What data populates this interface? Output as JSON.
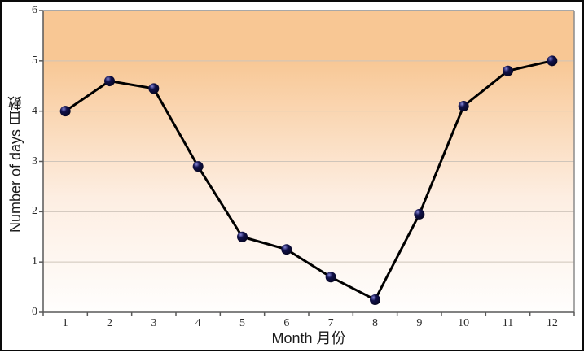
{
  "chart_data": {
    "type": "line",
    "title": "",
    "xlabel": "Month 月份",
    "ylabel": "Number of days 日數",
    "categories": [
      "1",
      "2",
      "3",
      "4",
      "5",
      "6",
      "7",
      "8",
      "9",
      "10",
      "11",
      "12"
    ],
    "series": [
      {
        "name": "Number of days",
        "values": [
          4.0,
          4.6,
          4.45,
          2.9,
          1.5,
          1.25,
          0.7,
          0.25,
          1.95,
          4.1,
          4.8,
          5.0
        ]
      }
    ],
    "ylim": [
      0,
      6
    ],
    "yticks": [
      0,
      1,
      2,
      3,
      4,
      5,
      6
    ],
    "grid": "horizontal",
    "legend": "none",
    "style": {
      "plot_bg_gradient_top": "#F8C794",
      "plot_bg_gradient_mid": "#FDEEE2",
      "plot_bg_gradient_bottom": "#FFFEFD",
      "line_color": "#000000",
      "marker_fill": "#11114a",
      "marker_highlight": "#8585d8",
      "marker_dark": "#05051f",
      "grid_color": "#CFC5BA",
      "axis_color": "#595959",
      "plot_border_color": "#8c8c8c",
      "frame_border_color": "#0a0a0a"
    }
  }
}
